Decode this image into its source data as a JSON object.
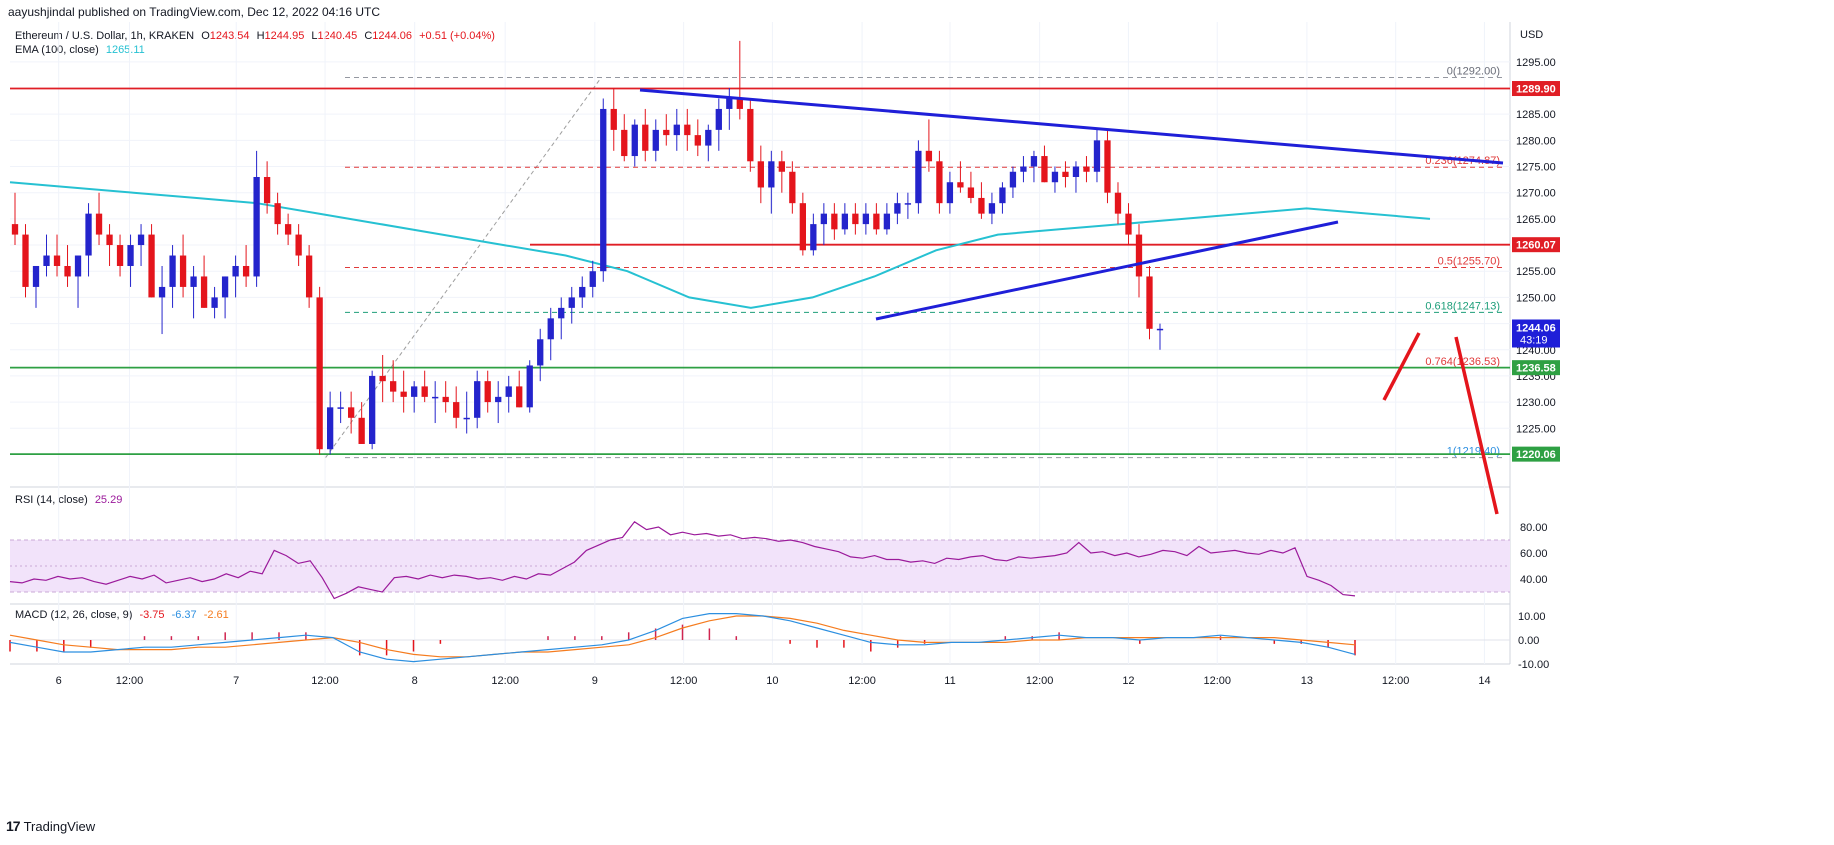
{
  "header": {
    "published": "aayushjindal published on TradingView.com, Dec 12, 2022 04:16 UTC",
    "symbol": "Ethereum / U.S. Dollar, 1h, KRAKEN",
    "ohlc": {
      "o_label": "O",
      "o": "1243.54",
      "h_label": "H",
      "h": "1244.95",
      "l_label": "L",
      "l": "1240.45",
      "c_label": "C",
      "c": "1244.06",
      "change": "+0.51 (+0.04%)"
    },
    "ema_label": "EMA (100, close)",
    "ema_value": "1265.11"
  },
  "rsi": {
    "label": "RSI (14, close)",
    "value": "25.29"
  },
  "macd": {
    "label": "MACD (12, 26, close, 9)",
    "v1": "-3.75",
    "v2": "-6.37",
    "v3": "-2.61"
  },
  "footer": {
    "brand": "TradingView"
  },
  "colors": {
    "up": "#2424cc",
    "down": "#e4151c",
    "ema": "#26c1d2",
    "trend": "#1f1fd8",
    "res": "#e01e25",
    "sup": "#2ea043",
    "fib": "#e03a3a",
    "rsi_bg": "#f2e3fa",
    "rsi_line": "#9b1a9b",
    "macd_line": "#2c8fe0",
    "signal_line": "#f57c1f"
  },
  "chart_data": [
    {
      "type": "candlestick",
      "title": "Ethereum / U.S. Dollar, 1h, KRAKEN",
      "price_unit": "USD",
      "x_ticks": [
        "6",
        "12:00",
        "7",
        "12:00",
        "8",
        "12:00",
        "9",
        "12:00",
        "10",
        "12:00",
        "11",
        "12:00",
        "12",
        "12:00",
        "13",
        "12:00",
        "14"
      ],
      "y_ticks": [
        "1295.00",
        "1290.00",
        "1285.00",
        "1280.00",
        "1275.00",
        "1270.00",
        "1265.00",
        "1260.00",
        "1255.00",
        "1250.00",
        "1245.00",
        "1240.00",
        "1235.00",
        "1230.00",
        "1225.00",
        "1220.00"
      ],
      "ylim": [
        1216,
        1302
      ],
      "grid": true,
      "candles": [
        [
          1264,
          1270,
          1260,
          1262
        ],
        [
          1262,
          1264,
          1250,
          1252
        ],
        [
          1252,
          1256,
          1248,
          1256
        ],
        [
          1256,
          1262,
          1254,
          1258
        ],
        [
          1258,
          1262,
          1254,
          1256
        ],
        [
          1256,
          1260,
          1252,
          1254
        ],
        [
          1254,
          1258,
          1248,
          1258
        ],
        [
          1258,
          1268,
          1254,
          1266
        ],
        [
          1266,
          1270,
          1260,
          1262
        ],
        [
          1262,
          1264,
          1256,
          1260
        ],
        [
          1260,
          1262,
          1254,
          1256
        ],
        [
          1256,
          1262,
          1252,
          1260
        ],
        [
          1260,
          1264,
          1256,
          1262
        ],
        [
          1262,
          1264,
          1250,
          1250
        ],
        [
          1250,
          1256,
          1243,
          1252
        ],
        [
          1252,
          1260,
          1248,
          1258
        ],
        [
          1258,
          1262,
          1250,
          1252
        ],
        [
          1252,
          1256,
          1246,
          1254
        ],
        [
          1254,
          1258,
          1248,
          1248
        ],
        [
          1248,
          1252,
          1246,
          1250
        ],
        [
          1250,
          1254,
          1246,
          1254
        ],
        [
          1254,
          1258,
          1250,
          1256
        ],
        [
          1256,
          1260,
          1252,
          1254
        ],
        [
          1254,
          1278,
          1252,
          1273
        ],
        [
          1273,
          1276,
          1266,
          1268
        ],
        [
          1268,
          1270,
          1262,
          1264
        ],
        [
          1264,
          1266,
          1260,
          1262
        ],
        [
          1262,
          1264,
          1256,
          1258
        ],
        [
          1258,
          1260,
          1248,
          1250
        ],
        [
          1250,
          1252,
          1220,
          1221
        ],
        [
          1221,
          1232,
          1220,
          1229
        ],
        [
          1229,
          1232,
          1226,
          1229
        ],
        [
          1229,
          1232,
          1224,
          1227
        ],
        [
          1227,
          1230,
          1222,
          1222
        ],
        [
          1222,
          1236,
          1221,
          1235
        ],
        [
          1235,
          1239,
          1230,
          1234
        ],
        [
          1234,
          1238,
          1230,
          1232
        ],
        [
          1232,
          1236,
          1228,
          1231
        ],
        [
          1231,
          1234,
          1228,
          1233
        ],
        [
          1233,
          1236,
          1230,
          1231
        ],
        [
          1231,
          1234,
          1226,
          1231
        ],
        [
          1231,
          1234,
          1228,
          1230
        ],
        [
          1230,
          1233,
          1225,
          1227
        ],
        [
          1227,
          1232,
          1224,
          1227
        ],
        [
          1227,
          1236,
          1225,
          1234
        ],
        [
          1234,
          1236,
          1228,
          1230
        ],
        [
          1230,
          1234,
          1226,
          1231
        ],
        [
          1231,
          1235,
          1228,
          1233
        ],
        [
          1233,
          1236,
          1229,
          1229
        ],
        [
          1229,
          1238,
          1228,
          1237
        ],
        [
          1237,
          1244,
          1234,
          1242
        ],
        [
          1242,
          1248,
          1238,
          1246
        ],
        [
          1246,
          1250,
          1242,
          1248
        ],
        [
          1248,
          1252,
          1245,
          1250
        ],
        [
          1250,
          1254,
          1248,
          1252
        ],
        [
          1252,
          1257,
          1250,
          1255
        ],
        [
          1255,
          1288,
          1253,
          1286
        ],
        [
          1286,
          1290,
          1278,
          1282
        ],
        [
          1282,
          1285,
          1276,
          1277
        ],
        [
          1277,
          1284,
          1275,
          1283
        ],
        [
          1283,
          1286,
          1276,
          1278
        ],
        [
          1278,
          1284,
          1276,
          1282
        ],
        [
          1282,
          1285,
          1279,
          1281
        ],
        [
          1281,
          1286,
          1278,
          1283
        ],
        [
          1283,
          1286,
          1278,
          1281
        ],
        [
          1281,
          1284,
          1277,
          1279
        ],
        [
          1279,
          1283,
          1276,
          1282
        ],
        [
          1282,
          1288,
          1278,
          1286
        ],
        [
          1286,
          1290,
          1282,
          1288
        ],
        [
          1288,
          1299,
          1284,
          1286
        ],
        [
          1286,
          1288,
          1274,
          1276
        ],
        [
          1276,
          1279,
          1268,
          1271
        ],
        [
          1271,
          1278,
          1266,
          1276
        ],
        [
          1276,
          1278,
          1270,
          1274
        ],
        [
          1274,
          1276,
          1266,
          1268
        ],
        [
          1268,
          1270,
          1258,
          1259
        ],
        [
          1259,
          1266,
          1258,
          1264
        ],
        [
          1264,
          1268,
          1260,
          1266
        ],
        [
          1266,
          1268,
          1261,
          1263
        ],
        [
          1263,
          1268,
          1262,
          1266
        ],
        [
          1266,
          1268,
          1262,
          1264
        ],
        [
          1264,
          1268,
          1262,
          1266
        ],
        [
          1266,
          1268,
          1262,
          1263
        ],
        [
          1263,
          1268,
          1262,
          1266
        ],
        [
          1266,
          1270,
          1264,
          1268
        ],
        [
          1268,
          1270,
          1265,
          1268
        ],
        [
          1268,
          1280,
          1266,
          1278
        ],
        [
          1278,
          1284,
          1274,
          1276
        ],
        [
          1276,
          1278,
          1266,
          1268
        ],
        [
          1268,
          1274,
          1266,
          1272
        ],
        [
          1272,
          1276,
          1270,
          1271
        ],
        [
          1271,
          1274,
          1268,
          1269
        ],
        [
          1269,
          1272,
          1265,
          1266
        ],
        [
          1266,
          1270,
          1264,
          1268
        ],
        [
          1268,
          1272,
          1266,
          1271
        ],
        [
          1271,
          1275,
          1269,
          1274
        ],
        [
          1274,
          1277,
          1272,
          1275
        ],
        [
          1275,
          1278,
          1272,
          1277
        ],
        [
          1277,
          1279,
          1272,
          1272
        ],
        [
          1272,
          1275,
          1270,
          1274
        ],
        [
          1274,
          1276,
          1271,
          1273
        ],
        [
          1273,
          1276,
          1270,
          1275
        ],
        [
          1275,
          1277,
          1272,
          1274
        ],
        [
          1274,
          1282,
          1272,
          1280
        ],
        [
          1280,
          1282,
          1268,
          1270
        ],
        [
          1270,
          1272,
          1264,
          1266
        ],
        [
          1266,
          1268,
          1260,
          1262
        ],
        [
          1262,
          1264,
          1250,
          1254
        ],
        [
          1254,
          1256,
          1242,
          1244
        ],
        [
          1244,
          1245,
          1240,
          1244
        ]
      ],
      "ema_100": [
        1272,
        1271,
        1270,
        1269,
        1268,
        1266,
        1264,
        1262,
        1260,
        1258,
        1255,
        1250,
        1248,
        1250,
        1254,
        1259,
        1262,
        1263,
        1264,
        1265,
        1266,
        1267,
        1266,
        1265
      ],
      "levels": [
        {
          "price": 1289.9,
          "label": "1289.90",
          "kind": "resistance"
        },
        {
          "price": 1260.07,
          "label": "1260.07",
          "kind": "resistance"
        },
        {
          "price": 1236.58,
          "label": "1236.58",
          "kind": "support"
        },
        {
          "price": 1220.06,
          "label": "1220.06",
          "kind": "support"
        }
      ],
      "fib": [
        {
          "price": 1292.0,
          "label": "0(1292.00)"
        },
        {
          "price": 1274.87,
          "label": "0.236(1274.87)"
        },
        {
          "price": 1255.7,
          "label": "0.5(1255.70)"
        },
        {
          "price": 1247.13,
          "label": "0.618(1247.13)"
        },
        {
          "price": 1236.53,
          "label": "0.764(1236.53)"
        },
        {
          "price": 1219.4,
          "label": "1(1219.40)"
        }
      ],
      "last_price": {
        "price": "1244.06",
        "countdown": "43:19"
      }
    },
    {
      "type": "line",
      "title": "RSI (14, close)",
      "y_ticks": [
        "80.00",
        "60.00",
        "40.00"
      ],
      "ylim": [
        22,
        88
      ],
      "band": [
        30,
        70
      ],
      "values": [
        38,
        37,
        40,
        39,
        42,
        40,
        41,
        38,
        36,
        39,
        42,
        40,
        43,
        37,
        39,
        41,
        38,
        40,
        44,
        41,
        46,
        44,
        62,
        58,
        52,
        54,
        41,
        25,
        29,
        34,
        32,
        30,
        41,
        42,
        40,
        43,
        41,
        43,
        42,
        40,
        41,
        39,
        42,
        40,
        44,
        43,
        48,
        53,
        62,
        66,
        70,
        72,
        84,
        78,
        80,
        74,
        76,
        74,
        75,
        73,
        74,
        71,
        72,
        71,
        69,
        70,
        68,
        65,
        63,
        61,
        57,
        56,
        58,
        55,
        55,
        53,
        54,
        52,
        56,
        55,
        57,
        58,
        55,
        54,
        57,
        56,
        57,
        58,
        60,
        68,
        60,
        61,
        58,
        60,
        57,
        59,
        62,
        61,
        58,
        65,
        60,
        61,
        62,
        60,
        59,
        62,
        60,
        64,
        42,
        39,
        35,
        28,
        27
      ],
      "last": "25.29"
    },
    {
      "type": "line",
      "title": "MACD (12, 26, close, 9)",
      "y_ticks": [
        "10.00",
        "0.00",
        "-10.00"
      ],
      "ylim": [
        -12,
        14
      ],
      "series": [
        {
          "name": "MACD",
          "values": [
            -1,
            -3,
            -5,
            -5,
            -4,
            -3,
            -3,
            -2,
            -1,
            0,
            1,
            2,
            1,
            -5,
            -8,
            -9,
            -8,
            -7,
            -6,
            -5,
            -4,
            -3,
            -2,
            0,
            4,
            9,
            11,
            11,
            10,
            8,
            5,
            2,
            -1,
            -2,
            -2,
            -1,
            -1,
            0,
            1,
            2,
            1,
            1,
            0,
            1,
            1,
            2,
            1,
            0,
            -1,
            -3,
            -6
          ]
        },
        {
          "name": "Signal",
          "values": [
            2,
            0,
            -2,
            -3,
            -4,
            -4,
            -4,
            -3,
            -3,
            -2,
            -1,
            0,
            1,
            -1,
            -4,
            -6,
            -7,
            -7,
            -6,
            -5,
            -5,
            -4,
            -3,
            -2,
            1,
            5,
            8,
            10,
            10,
            9,
            7,
            4,
            2,
            0,
            -1,
            -1,
            -1,
            -1,
            0,
            0,
            1,
            1,
            1,
            1,
            1,
            1,
            1,
            1,
            0,
            -1,
            -2
          ]
        }
      ]
    }
  ]
}
